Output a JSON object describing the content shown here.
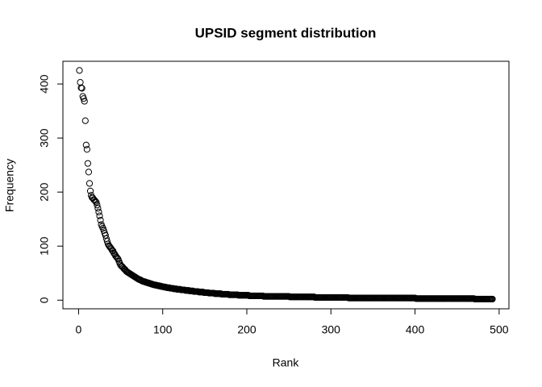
{
  "chart_data": {
    "type": "scatter",
    "title": "UPSID segment distribution",
    "x_label": "Rank",
    "y_label": "Frequency",
    "xlim": [
      -18.64,
      511.64
    ],
    "ylim": [
      -15.96,
      441.96
    ],
    "xticks": [
      0,
      100,
      200,
      300,
      400,
      500
    ],
    "yticks": [
      0,
      100,
      200,
      300,
      400
    ],
    "color": "#000000",
    "grid": false,
    "x": [
      1,
      2,
      3,
      4,
      5,
      6,
      7,
      8,
      9,
      10,
      11,
      12,
      13,
      14,
      15,
      16,
      17,
      18,
      19,
      20,
      21,
      22,
      23,
      24,
      25,
      26,
      27,
      28,
      29,
      30,
      31,
      32,
      33,
      34,
      35,
      36,
      37,
      38,
      39,
      40,
      41,
      42,
      43,
      44,
      45,
      46,
      47,
      48,
      49,
      50,
      51,
      52,
      53,
      54,
      55,
      56,
      57,
      58,
      59,
      60,
      61,
      62,
      63,
      64,
      65,
      66,
      67,
      68,
      69,
      70,
      71,
      72,
      73,
      74,
      75,
      76,
      77,
      78,
      79,
      80,
      81,
      82,
      83,
      84,
      85,
      86,
      87,
      88,
      89,
      90,
      91,
      92,
      93,
      94,
      95,
      96,
      97,
      98,
      99,
      100,
      101,
      102,
      103,
      104,
      105,
      106,
      107,
      108,
      109,
      110,
      111,
      112,
      113,
      114,
      115,
      116,
      117,
      118,
      119,
      120,
      121,
      122,
      123,
      124,
      125,
      126,
      127,
      128,
      129,
      130,
      131,
      132,
      133,
      134,
      135,
      136,
      137,
      138,
      139,
      140,
      141,
      142,
      143,
      144,
      145,
      146,
      147,
      148,
      149,
      150,
      151,
      152,
      153,
      154,
      155,
      156,
      157,
      158,
      159,
      160,
      161,
      162,
      163,
      164,
      165,
      166,
      167,
      168,
      169,
      170,
      171,
      172,
      173,
      174,
      175,
      176,
      177,
      178,
      179,
      180,
      181,
      182,
      183,
      184,
      185,
      186,
      187,
      188,
      189,
      190,
      191,
      192,
      193,
      194,
      195,
      196,
      197,
      198,
      199,
      200,
      201,
      202,
      203,
      204,
      205,
      206,
      207,
      208,
      209,
      210,
      211,
      212,
      213,
      214,
      215,
      216,
      217,
      218,
      219,
      220,
      221,
      222,
      223,
      224,
      225,
      226,
      227,
      228,
      229,
      230,
      231,
      232,
      233,
      234,
      235,
      236,
      237,
      238,
      239,
      240,
      241,
      242,
      243,
      244,
      245,
      246,
      247,
      248,
      249,
      250,
      251,
      252,
      253,
      254,
      255,
      256,
      257,
      258,
      259,
      260,
      261,
      262,
      263,
      264,
      265,
      266,
      267,
      268,
      269,
      270,
      271,
      272,
      273,
      274,
      275,
      276,
      277,
      278,
      279,
      280,
      281,
      282,
      283,
      284,
      285,
      286,
      287,
      288,
      289,
      290,
      291,
      292,
      293,
      294,
      295,
      296,
      297,
      298,
      299,
      300,
      301,
      302,
      303,
      304,
      305,
      306,
      307,
      308,
      309,
      310,
      311,
      312,
      313,
      314,
      315,
      316,
      317,
      318,
      319,
      320,
      321,
      322,
      323,
      324,
      325,
      326,
      327,
      328,
      329,
      330,
      331,
      332,
      333,
      334,
      335,
      336,
      337,
      338,
      339,
      340,
      341,
      342,
      343,
      344,
      345,
      346,
      347,
      348,
      349,
      350,
      351,
      352,
      353,
      354,
      355,
      356,
      357,
      358,
      359,
      360,
      361,
      362,
      363,
      364,
      365,
      366,
      367,
      368,
      369,
      370,
      371,
      372,
      373,
      374,
      375,
      376,
      377,
      378,
      379,
      380,
      381,
      382,
      383,
      384,
      385,
      386,
      387,
      388,
      389,
      390,
      391,
      392,
      393,
      394,
      395,
      396,
      397,
      398,
      399,
      400,
      401,
      402,
      403,
      404,
      405,
      406,
      407,
      408,
      409,
      410,
      411,
      412,
      413,
      414,
      415,
      416,
      417,
      418,
      419,
      420,
      421,
      422,
      423,
      424,
      425,
      426,
      427,
      428,
      429,
      430,
      431,
      432,
      433,
      434,
      435,
      436,
      437,
      438,
      439,
      440,
      441,
      442,
      443,
      444,
      445,
      446,
      447,
      448,
      449,
      450,
      451,
      452,
      453,
      454,
      455,
      456,
      457,
      458,
      459,
      460,
      461,
      462,
      463,
      464,
      465,
      466,
      467,
      468,
      469,
      470,
      471,
      472,
      473,
      474,
      475,
      476,
      477,
      478,
      479,
      480,
      481,
      482,
      483,
      484,
      485,
      486,
      487,
      488,
      489,
      490,
      491,
      492
    ],
    "values": [
      425,
      403,
      393,
      392,
      377,
      373,
      368,
      332,
      287,
      279,
      253,
      237,
      216,
      202,
      194,
      190,
      189,
      186,
      185,
      183,
      181,
      176,
      170,
      163,
      156,
      148,
      140,
      136,
      133,
      129,
      124,
      120,
      114,
      109,
      104,
      101,
      99,
      97,
      95,
      92,
      91,
      87,
      85,
      82,
      80,
      78,
      76,
      72,
      68,
      65,
      63,
      62,
      60,
      58,
      57,
      55,
      53,
      52,
      51,
      50,
      49,
      48,
      47,
      46,
      45,
      44,
      43,
      42,
      41,
      40,
      39,
      38,
      38,
      37,
      36,
      35,
      35,
      34,
      34,
      33,
      33,
      32,
      32,
      31,
      31,
      30,
      30,
      29,
      29,
      28,
      28,
      28,
      27,
      27,
      27,
      26,
      26,
      26,
      25,
      25,
      25,
      24,
      24,
      24,
      23,
      23,
      23,
      23,
      22,
      22,
      22,
      22,
      21,
      21,
      21,
      21,
      20,
      20,
      20,
      20,
      20,
      19,
      19,
      19,
      19,
      19,
      18,
      18,
      18,
      18,
      18,
      17,
      17,
      17,
      17,
      17,
      16,
      16,
      16,
      16,
      16,
      16,
      15,
      15,
      15,
      15,
      15,
      15,
      14,
      14,
      14,
      14,
      14,
      14,
      13,
      13,
      13,
      13,
      13,
      13,
      13,
      12,
      12,
      12,
      12,
      12,
      12,
      12,
      12,
      11,
      11,
      11,
      11,
      11,
      11,
      11,
      11,
      11,
      10,
      10,
      10,
      10,
      10,
      10,
      10,
      10,
      10,
      10,
      10,
      9,
      9,
      9,
      9,
      9,
      9,
      9,
      9,
      9,
      9,
      9,
      9,
      9,
      8,
      8,
      8,
      8,
      8,
      8,
      8,
      8,
      8,
      8,
      8,
      8,
      8,
      8,
      8,
      8,
      8,
      7,
      7,
      7,
      7,
      7,
      7,
      7,
      7,
      7,
      7,
      7,
      7,
      7,
      7,
      7,
      7,
      7,
      7,
      7,
      7,
      7,
      7,
      7,
      7,
      7,
      7,
      7,
      7,
      7,
      7,
      7,
      6,
      6,
      6,
      6,
      6,
      6,
      6,
      6,
      6,
      6,
      6,
      6,
      6,
      6,
      6,
      6,
      6,
      6,
      6,
      6,
      6,
      6,
      6,
      6,
      6,
      6,
      6,
      6,
      6,
      6,
      5,
      5,
      5,
      5,
      5,
      5,
      5,
      5,
      5,
      5,
      5,
      5,
      5,
      5,
      5,
      5,
      5,
      5,
      5,
      5,
      5,
      5,
      5,
      5,
      5,
      5,
      5,
      5,
      5,
      5,
      5,
      5,
      5,
      5,
      5,
      5,
      5,
      5,
      5,
      5,
      4,
      4,
      4,
      4,
      4,
      4,
      4,
      4,
      4,
      4,
      4,
      4,
      4,
      4,
      4,
      4,
      4,
      4,
      4,
      4,
      4,
      4,
      4,
      4,
      4,
      4,
      4,
      4,
      4,
      4,
      4,
      4,
      4,
      4,
      4,
      4,
      4,
      4,
      4,
      4,
      4,
      4,
      4,
      4,
      4,
      4,
      4,
      4,
      4,
      4,
      4,
      4,
      4,
      4,
      4,
      4,
      4,
      4,
      4,
      4,
      4,
      4,
      4,
      4,
      4,
      4,
      4,
      4,
      4,
      4,
      4,
      4,
      4,
      4,
      4,
      4,
      4,
      4,
      4,
      4,
      3,
      3,
      3,
      3,
      3,
      3,
      3,
      3,
      3,
      3,
      3,
      3,
      3,
      3,
      3,
      3,
      3,
      3,
      3,
      3,
      3,
      3,
      3,
      3,
      3,
      3,
      3,
      3,
      3,
      3,
      3,
      3,
      3,
      3,
      3,
      3,
      3,
      3,
      3,
      3,
      3,
      3,
      3,
      3,
      3,
      3,
      3,
      3,
      3,
      3,
      3,
      3,
      3,
      3,
      3,
      3,
      3,
      3,
      3,
      3,
      3,
      3,
      3,
      3,
      3,
      3,
      3,
      3,
      3,
      3,
      2,
      2,
      2,
      2,
      2,
      2,
      2,
      2,
      2,
      2,
      2,
      2,
      2,
      2,
      2,
      2,
      2,
      2,
      2,
      2,
      2,
      2
    ]
  }
}
